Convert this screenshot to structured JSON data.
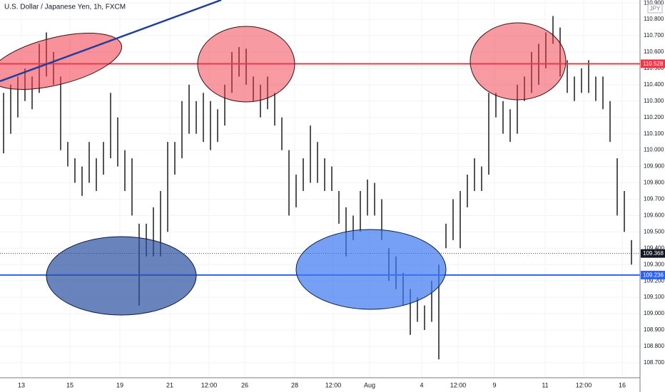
{
  "chart_data": {
    "type": "ohlc",
    "title": "U.S. Dollar / Japanese Yen, 1h, FXCM",
    "currency": "JPY",
    "color": "#555555",
    "grid": true,
    "xlim": [
      -0.5,
      89.2
    ],
    "ylim": [
      108.608,
      110.918
    ],
    "xticks": [
      {
        "value": 2.5,
        "label": "13"
      },
      {
        "value": 9.3,
        "label": "15"
      },
      {
        "value": 16.3,
        "label": "19"
      },
      {
        "value": 23.3,
        "label": "21"
      },
      {
        "value": 28.8,
        "label": "12:00"
      },
      {
        "value": 33.8,
        "label": "26"
      },
      {
        "value": 40.8,
        "label": "28"
      },
      {
        "value": 46.2,
        "label": "12:00"
      },
      {
        "value": 51.3,
        "label": "Aug"
      },
      {
        "value": 58.6,
        "label": "4"
      },
      {
        "value": 63.7,
        "label": "12:00"
      },
      {
        "value": 68.8,
        "label": "9"
      },
      {
        "value": 75.9,
        "label": "11"
      },
      {
        "value": 81.3,
        "label": "12:00"
      },
      {
        "value": 86.7,
        "label": "16"
      }
    ],
    "yticks": [
      {
        "value": 108.7,
        "label": "108.700"
      },
      {
        "value": 108.8,
        "label": "108.800"
      },
      {
        "value": 108.9,
        "label": "108.900"
      },
      {
        "value": 109.0,
        "label": "109.000"
      },
      {
        "value": 109.1,
        "label": "109.100"
      },
      {
        "value": 109.2,
        "label": "109.200"
      },
      {
        "value": 109.3,
        "label": "109.300"
      },
      {
        "value": 109.4,
        "label": "109.400"
      },
      {
        "value": 109.5,
        "label": "109.500"
      },
      {
        "value": 109.6,
        "label": "109.600"
      },
      {
        "value": 109.7,
        "label": "109.700"
      },
      {
        "value": 109.8,
        "label": "109.800"
      },
      {
        "value": 109.9,
        "label": "109.900"
      },
      {
        "value": 110.0,
        "label": "110.000"
      },
      {
        "value": 110.1,
        "label": "110.100"
      },
      {
        "value": 110.2,
        "label": "110.200"
      },
      {
        "value": 110.3,
        "label": "110.300"
      },
      {
        "value": 110.4,
        "label": "110.400"
      },
      {
        "value": 110.5,
        "label": "110.500"
      },
      {
        "value": 110.6,
        "label": "110.600"
      },
      {
        "value": 110.7,
        "label": "110.700"
      },
      {
        "value": 110.8,
        "label": "110.800"
      },
      {
        "value": 110.9,
        "label": "110.900"
      }
    ],
    "high": [
      110.35,
      110.4,
      110.45,
      110.5,
      110.45,
      110.65,
      110.72,
      110.6,
      110.45,
      110.05,
      109.95,
      109.9,
      110.05,
      109.95,
      110.05,
      110.35,
      110.2,
      110.0,
      109.95,
      109.55,
      109.55,
      109.65,
      109.75,
      110.05,
      110.05,
      110.3,
      110.4,
      110.3,
      110.35,
      110.3,
      110.25,
      110.4,
      110.6,
      110.63,
      110.62,
      110.45,
      110.4,
      110.45,
      110.35,
      110.2,
      110.0,
      109.85,
      109.95,
      110.15,
      110.05,
      109.95,
      109.9,
      109.75,
      109.65,
      109.6,
      109.75,
      109.82,
      109.8,
      109.7,
      109.4,
      109.35,
      109.25,
      109.15,
      109.1,
      109.05,
      109.2,
      109.3,
      109.55,
      109.7,
      109.75,
      109.85,
      109.95,
      109.9,
      110.35,
      110.35,
      110.3,
      110.25,
      110.4,
      110.45,
      110.6,
      110.65,
      110.72,
      110.82,
      110.75,
      110.55,
      110.45,
      110.5,
      110.55,
      110.45,
      110.45,
      110.3,
      109.95,
      109.75,
      109.45
    ],
    "low": [
      109.98,
      110.1,
      110.2,
      110.3,
      110.25,
      110.35,
      110.45,
      110.4,
      110.0,
      109.9,
      109.8,
      109.72,
      109.8,
      109.75,
      109.85,
      109.95,
      109.9,
      109.75,
      109.6,
      109.05,
      109.35,
      109.35,
      109.35,
      109.5,
      109.85,
      109.95,
      110.1,
      110.1,
      110.05,
      110.0,
      110.05,
      110.15,
      110.35,
      110.45,
      110.4,
      110.3,
      110.2,
      110.25,
      110.15,
      110.0,
      109.6,
      109.65,
      109.75,
      109.8,
      109.8,
      109.75,
      109.75,
      109.55,
      109.35,
      109.45,
      109.5,
      109.6,
      109.6,
      109.45,
      109.2,
      109.15,
      109.05,
      108.87,
      108.95,
      108.9,
      108.95,
      108.72,
      109.4,
      109.45,
      109.4,
      109.65,
      109.75,
      109.75,
      109.85,
      110.2,
      110.1,
      110.05,
      110.1,
      110.3,
      110.35,
      110.4,
      110.5,
      110.65,
      110.45,
      110.35,
      110.3,
      110.35,
      110.35,
      110.3,
      110.25,
      110.05,
      109.6,
      109.5,
      109.3
    ],
    "levels": [
      {
        "value": 110.528,
        "color": "#f23645"
      },
      {
        "value": 109.236,
        "color": "#2962ff"
      }
    ],
    "last_price": {
      "value": 109.368,
      "color": "#131722"
    }
  }
}
